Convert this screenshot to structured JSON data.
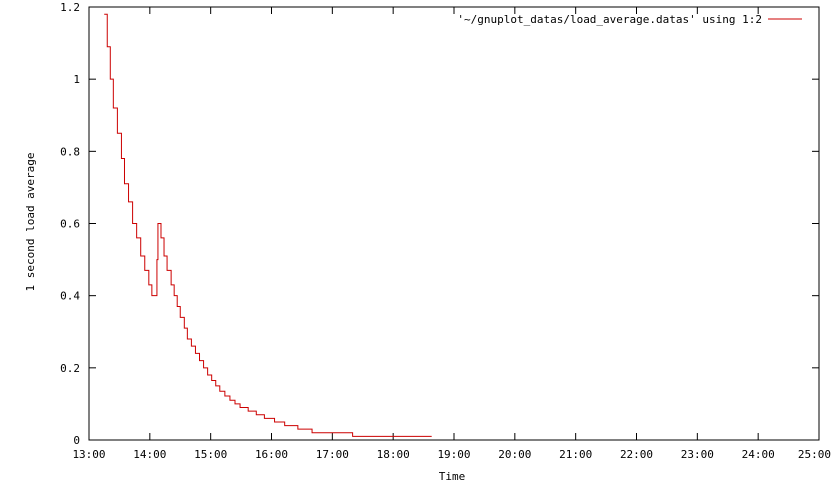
{
  "chart_data": {
    "type": "line",
    "title": "",
    "xlabel": "Time",
    "ylabel": "1 second load average",
    "x_unit": "HH:MM",
    "xlim": [
      "13:00",
      "25:00"
    ],
    "ylim": [
      0,
      1.2
    ],
    "x_ticks": [
      "13:00",
      "14:00",
      "15:00",
      "16:00",
      "17:00",
      "18:00",
      "19:00",
      "20:00",
      "21:00",
      "22:00",
      "23:00",
      "24:00",
      "25:00"
    ],
    "y_ticks": [
      "0",
      "0.2",
      "0.4",
      "0.6",
      "0.8",
      "1",
      "1.2"
    ],
    "grid": false,
    "legend_position": "top-right",
    "series": [
      {
        "name": "'~/gnuplot_datas/load_average.datas' using 1:2",
        "color": "#cc0000",
        "step": true,
        "points": [
          [
            "13:15",
            1.18
          ],
          [
            "13:18",
            1.09
          ],
          [
            "13:21",
            1.0
          ],
          [
            "13:24",
            0.92
          ],
          [
            "13:28",
            0.85
          ],
          [
            "13:32",
            0.78
          ],
          [
            "13:35",
            0.71
          ],
          [
            "13:39",
            0.66
          ],
          [
            "13:43",
            0.6
          ],
          [
            "13:47",
            0.56
          ],
          [
            "13:51",
            0.51
          ],
          [
            "13:55",
            0.47
          ],
          [
            "13:59",
            0.43
          ],
          [
            "14:02",
            0.4
          ],
          [
            "14:06",
            0.4
          ],
          [
            "14:07",
            0.5
          ],
          [
            "14:08",
            0.6
          ],
          [
            "14:11",
            0.56
          ],
          [
            "14:14",
            0.51
          ],
          [
            "14:17",
            0.47
          ],
          [
            "14:21",
            0.43
          ],
          [
            "14:24",
            0.4
          ],
          [
            "14:27",
            0.37
          ],
          [
            "14:30",
            0.34
          ],
          [
            "14:34",
            0.31
          ],
          [
            "14:37",
            0.28
          ],
          [
            "14:41",
            0.26
          ],
          [
            "14:45",
            0.24
          ],
          [
            "14:49",
            0.22
          ],
          [
            "14:53",
            0.2
          ],
          [
            "14:57",
            0.18
          ],
          [
            "15:01",
            0.165
          ],
          [
            "15:05",
            0.15
          ],
          [
            "15:09",
            0.135
          ],
          [
            "15:14",
            0.122
          ],
          [
            "15:19",
            0.11
          ],
          [
            "15:24",
            0.1
          ],
          [
            "15:29",
            0.09
          ],
          [
            "15:37",
            0.08
          ],
          [
            "15:45",
            0.07
          ],
          [
            "15:53",
            0.06
          ],
          [
            "16:03",
            0.05
          ],
          [
            "16:13",
            0.04
          ],
          [
            "16:26",
            0.03
          ],
          [
            "16:40",
            0.02
          ],
          [
            "17:20",
            0.01
          ],
          [
            "18:38",
            0.01
          ]
        ]
      }
    ]
  }
}
